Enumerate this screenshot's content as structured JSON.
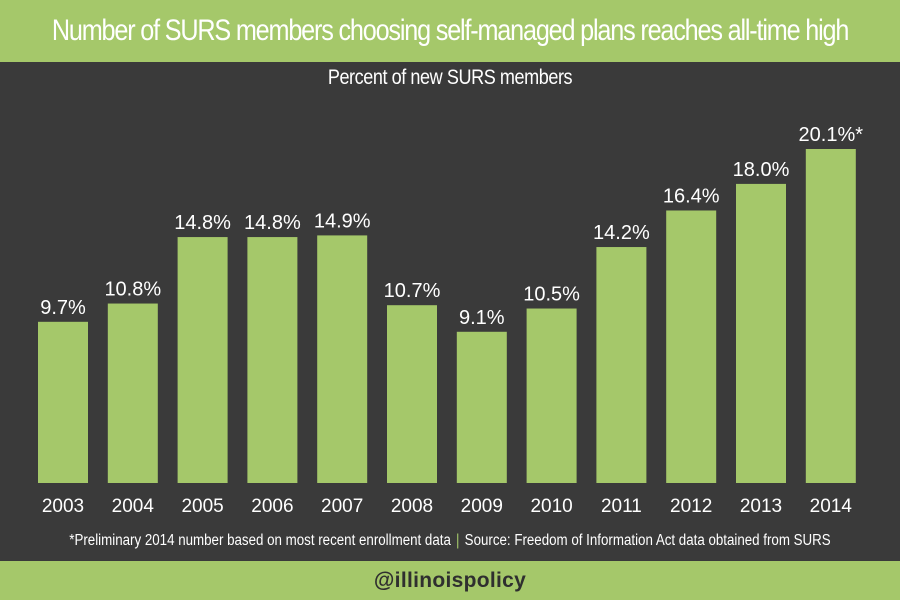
{
  "colors": {
    "background": "#3a3a3a",
    "accent": "#a5c86a",
    "text": "#ffffff"
  },
  "footnote": {
    "note": "*Preliminary 2014 number based on most recent enrollment data",
    "separator": "|",
    "source": "Source: Freedom of Information Act data obtained from SURS"
  },
  "brand": {
    "handle": "@illinoispolicy"
  },
  "chart_data": {
    "type": "bar",
    "title": "Number of SURS members choosing self-managed plans reaches all-time high",
    "subtitle": "Percent of new SURS members",
    "xlabel": "",
    "ylabel": "",
    "categories": [
      "2003",
      "2004",
      "2005",
      "2006",
      "2007",
      "2008",
      "2009",
      "2010",
      "2011",
      "2012",
      "2013",
      "2014"
    ],
    "values": [
      9.7,
      10.8,
      14.8,
      14.8,
      14.9,
      10.7,
      9.1,
      10.5,
      14.2,
      16.4,
      18.0,
      20.1
    ],
    "labels": [
      "9.7%",
      "10.8%",
      "14.8%",
      "14.8%",
      "14.9%",
      "10.7%",
      "9.1%",
      "10.5%",
      "14.2%",
      "16.4%",
      "18.0%",
      "20.1%*"
    ],
    "ylim": [
      0,
      20.1
    ],
    "grid": false,
    "legend": "none",
    "bar_color": "#a5c86a"
  }
}
